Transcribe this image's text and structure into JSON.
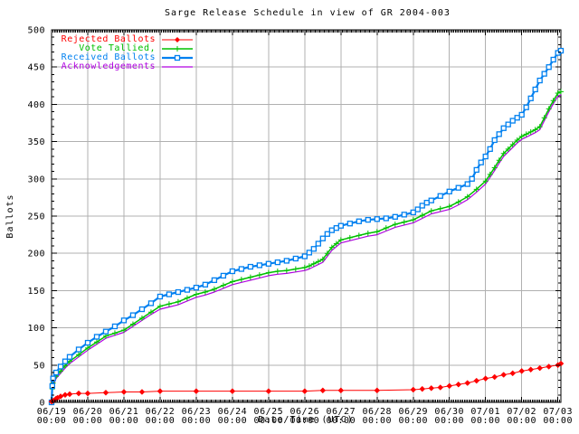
{
  "chart_data": {
    "type": "line",
    "title": "Sarge Release Schedule in view of GR 2004-003",
    "xlabel": "Date/Time (UTC)",
    "ylabel": "Ballots",
    "ylim": [
      0,
      500
    ],
    "y_tick_step": 50,
    "y_tick_labels": [
      "0",
      "50",
      "100",
      "150",
      "200",
      "250",
      "300",
      "350",
      "400",
      "450",
      "500"
    ],
    "x_unit": "hours since 06/19 00:00 UTC",
    "xlim_hours": [
      0,
      338
    ],
    "grid": true,
    "legend_position": "top-left",
    "colors": {
      "grid": "#b0b0b0",
      "border": "#000000",
      "background": "#ffffff"
    },
    "x_ticks": [
      {
        "hours": 0,
        "date": "06/19",
        "time": "00:00"
      },
      {
        "hours": 24,
        "date": "06/20",
        "time": "00:00"
      },
      {
        "hours": 48,
        "date": "06/21",
        "time": "00:00"
      },
      {
        "hours": 72,
        "date": "06/22",
        "time": "00:00"
      },
      {
        "hours": 96,
        "date": "06/23",
        "time": "00:00"
      },
      {
        "hours": 120,
        "date": "06/24",
        "time": "00:00"
      },
      {
        "hours": 144,
        "date": "06/25",
        "time": "00:00"
      },
      {
        "hours": 168,
        "date": "06/26",
        "time": "00:00"
      },
      {
        "hours": 192,
        "date": "06/27",
        "time": "00:00"
      },
      {
        "hours": 216,
        "date": "06/28",
        "time": "00:00"
      },
      {
        "hours": 240,
        "date": "06/29",
        "time": "00:00"
      },
      {
        "hours": 264,
        "date": "06/30",
        "time": "00:00"
      },
      {
        "hours": 288,
        "date": "07/01",
        "time": "00:00"
      },
      {
        "hours": 312,
        "date": "07/02",
        "time": "00:00"
      },
      {
        "hours": 336,
        "date": "07/03",
        "time": "00:00"
      }
    ],
    "series": [
      {
        "name": "Rejected Ballots",
        "color": "#ff0000",
        "marker": "diamond",
        "z": 4,
        "width": 1,
        "points": [
          [
            0,
            1
          ],
          [
            1,
            2
          ],
          [
            2,
            3
          ],
          [
            3,
            5
          ],
          [
            4,
            6
          ],
          [
            6,
            8
          ],
          [
            9,
            10
          ],
          [
            12,
            11
          ],
          [
            18,
            12
          ],
          [
            24,
            12
          ],
          [
            36,
            13
          ],
          [
            48,
            14
          ],
          [
            60,
            14
          ],
          [
            72,
            15
          ],
          [
            96,
            15
          ],
          [
            120,
            15
          ],
          [
            144,
            15
          ],
          [
            168,
            15
          ],
          [
            180,
            16
          ],
          [
            192,
            16
          ],
          [
            216,
            16
          ],
          [
            240,
            17
          ],
          [
            246,
            18
          ],
          [
            252,
            19
          ],
          [
            258,
            20
          ],
          [
            264,
            22
          ],
          [
            270,
            24
          ],
          [
            276,
            26
          ],
          [
            282,
            29
          ],
          [
            288,
            32
          ],
          [
            294,
            34
          ],
          [
            300,
            37
          ],
          [
            306,
            39
          ],
          [
            312,
            42
          ],
          [
            318,
            44
          ],
          [
            324,
            46
          ],
          [
            330,
            48
          ],
          [
            336,
            50
          ],
          [
            338,
            52
          ]
        ]
      },
      {
        "name": "Vote Tallied,",
        "color": "#00c000",
        "marker": "plus",
        "z": 2,
        "width": 1.5,
        "points": [
          [
            0,
            0
          ],
          [
            0.5,
            18
          ],
          [
            1,
            26
          ],
          [
            3,
            35
          ],
          [
            6,
            42
          ],
          [
            9,
            49
          ],
          [
            12,
            55
          ],
          [
            18,
            64
          ],
          [
            24,
            73
          ],
          [
            30,
            81
          ],
          [
            36,
            89
          ],
          [
            42,
            93
          ],
          [
            48,
            97
          ],
          [
            54,
            105
          ],
          [
            60,
            113
          ],
          [
            66,
            121
          ],
          [
            72,
            129
          ],
          [
            78,
            132
          ],
          [
            84,
            135
          ],
          [
            90,
            140
          ],
          [
            96,
            145
          ],
          [
            102,
            148
          ],
          [
            108,
            152
          ],
          [
            114,
            157
          ],
          [
            120,
            162
          ],
          [
            126,
            165
          ],
          [
            132,
            168
          ],
          [
            138,
            171
          ],
          [
            144,
            174
          ],
          [
            150,
            176
          ],
          [
            156,
            177
          ],
          [
            162,
            179
          ],
          [
            168,
            181
          ],
          [
            171,
            183
          ],
          [
            174,
            186
          ],
          [
            177,
            189
          ],
          [
            180,
            192
          ],
          [
            183,
            200
          ],
          [
            186,
            208
          ],
          [
            189,
            213
          ],
          [
            192,
            218
          ],
          [
            198,
            221
          ],
          [
            204,
            224
          ],
          [
            210,
            227
          ],
          [
            216,
            229
          ],
          [
            222,
            234
          ],
          [
            228,
            239
          ],
          [
            234,
            242
          ],
          [
            240,
            245
          ],
          [
            246,
            251
          ],
          [
            252,
            257
          ],
          [
            258,
            260
          ],
          [
            264,
            263
          ],
          [
            270,
            269
          ],
          [
            276,
            276
          ],
          [
            282,
            286
          ],
          [
            288,
            297
          ],
          [
            291,
            306
          ],
          [
            294,
            315
          ],
          [
            297,
            325
          ],
          [
            300,
            334
          ],
          [
            303,
            340
          ],
          [
            306,
            346
          ],
          [
            309,
            352
          ],
          [
            312,
            357
          ],
          [
            315,
            360
          ],
          [
            318,
            363
          ],
          [
            321,
            366
          ],
          [
            324,
            370
          ],
          [
            327,
            382
          ],
          [
            330,
            394
          ],
          [
            333,
            405
          ],
          [
            336,
            415
          ],
          [
            338,
            417
          ]
        ]
      },
      {
        "name": "Received Ballots",
        "color": "#0080f0",
        "marker": "square",
        "z": 3,
        "width": 2.2,
        "points": [
          [
            0,
            0
          ],
          [
            0.5,
            22
          ],
          [
            1,
            32
          ],
          [
            3,
            40
          ],
          [
            6,
            48
          ],
          [
            9,
            55
          ],
          [
            12,
            61
          ],
          [
            18,
            71
          ],
          [
            24,
            80
          ],
          [
            30,
            88
          ],
          [
            36,
            95
          ],
          [
            42,
            102
          ],
          [
            48,
            110
          ],
          [
            54,
            117
          ],
          [
            60,
            125
          ],
          [
            66,
            133
          ],
          [
            72,
            142
          ],
          [
            78,
            145
          ],
          [
            84,
            148
          ],
          [
            90,
            151
          ],
          [
            96,
            154
          ],
          [
            102,
            158
          ],
          [
            108,
            164
          ],
          [
            114,
            170
          ],
          [
            120,
            176
          ],
          [
            126,
            179
          ],
          [
            132,
            182
          ],
          [
            138,
            184
          ],
          [
            144,
            186
          ],
          [
            150,
            188
          ],
          [
            156,
            190
          ],
          [
            162,
            193
          ],
          [
            168,
            196
          ],
          [
            171,
            201
          ],
          [
            174,
            206
          ],
          [
            177,
            213
          ],
          [
            180,
            220
          ],
          [
            183,
            226
          ],
          [
            186,
            231
          ],
          [
            189,
            234
          ],
          [
            192,
            237
          ],
          [
            198,
            240
          ],
          [
            204,
            243
          ],
          [
            210,
            245
          ],
          [
            216,
            246
          ],
          [
            222,
            247
          ],
          [
            228,
            249
          ],
          [
            234,
            252
          ],
          [
            240,
            255
          ],
          [
            243,
            259
          ],
          [
            246,
            264
          ],
          [
            249,
            268
          ],
          [
            252,
            271
          ],
          [
            258,
            277
          ],
          [
            264,
            283
          ],
          [
            270,
            288
          ],
          [
            276,
            293
          ],
          [
            279,
            300
          ],
          [
            282,
            312
          ],
          [
            285,
            322
          ],
          [
            288,
            330
          ],
          [
            291,
            340
          ],
          [
            294,
            352
          ],
          [
            297,
            360
          ],
          [
            300,
            368
          ],
          [
            303,
            373
          ],
          [
            306,
            378
          ],
          [
            309,
            382
          ],
          [
            312,
            386
          ],
          [
            315,
            396
          ],
          [
            318,
            408
          ],
          [
            321,
            420
          ],
          [
            324,
            432
          ],
          [
            327,
            441
          ],
          [
            330,
            450
          ],
          [
            333,
            460
          ],
          [
            336,
            469
          ],
          [
            338,
            472
          ]
        ]
      },
      {
        "name": "Acknowledgements",
        "color": "#b000e0",
        "marker": "none",
        "z": 1,
        "width": 1.2,
        "points": [
          [
            0,
            0
          ],
          [
            0.5,
            15
          ],
          [
            1,
            23
          ],
          [
            3,
            32
          ],
          [
            6,
            39
          ],
          [
            9,
            46
          ],
          [
            12,
            52
          ],
          [
            18,
            61
          ],
          [
            24,
            70
          ],
          [
            30,
            78
          ],
          [
            36,
            86
          ],
          [
            42,
            90
          ],
          [
            48,
            94
          ],
          [
            54,
            102
          ],
          [
            60,
            110
          ],
          [
            66,
            118
          ],
          [
            72,
            125
          ],
          [
            78,
            128
          ],
          [
            84,
            131
          ],
          [
            90,
            136
          ],
          [
            96,
            141
          ],
          [
            102,
            144
          ],
          [
            108,
            148
          ],
          [
            114,
            153
          ],
          [
            120,
            158
          ],
          [
            126,
            161
          ],
          [
            132,
            164
          ],
          [
            138,
            167
          ],
          [
            144,
            170
          ],
          [
            150,
            172
          ],
          [
            156,
            173
          ],
          [
            162,
            175
          ],
          [
            168,
            177
          ],
          [
            171,
            179
          ],
          [
            174,
            182
          ],
          [
            177,
            185
          ],
          [
            180,
            188
          ],
          [
            183,
            196
          ],
          [
            186,
            204
          ],
          [
            189,
            209
          ],
          [
            192,
            214
          ],
          [
            198,
            217
          ],
          [
            204,
            220
          ],
          [
            210,
            223
          ],
          [
            216,
            225
          ],
          [
            222,
            230
          ],
          [
            228,
            235
          ],
          [
            234,
            238
          ],
          [
            240,
            241
          ],
          [
            246,
            247
          ],
          [
            252,
            253
          ],
          [
            258,
            256
          ],
          [
            264,
            259
          ],
          [
            270,
            265
          ],
          [
            276,
            272
          ],
          [
            282,
            282
          ],
          [
            288,
            293
          ],
          [
            291,
            302
          ],
          [
            294,
            311
          ],
          [
            297,
            321
          ],
          [
            300,
            330
          ],
          [
            303,
            336
          ],
          [
            306,
            342
          ],
          [
            309,
            348
          ],
          [
            312,
            353
          ],
          [
            315,
            356
          ],
          [
            318,
            359
          ],
          [
            321,
            362
          ],
          [
            324,
            366
          ],
          [
            327,
            378
          ],
          [
            330,
            390
          ],
          [
            333,
            401
          ],
          [
            336,
            411
          ],
          [
            338,
            413
          ]
        ]
      }
    ]
  }
}
